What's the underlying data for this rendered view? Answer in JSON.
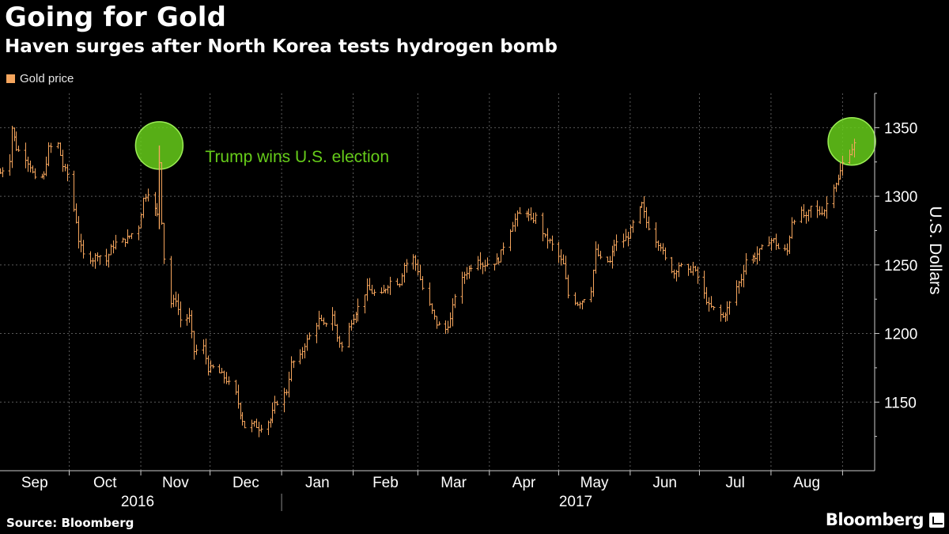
{
  "header": {
    "title": "Going for Gold",
    "subtitle": "Haven surges after North Korea tests hydrogen bomb"
  },
  "footer": {
    "source": "Source: Bloomberg",
    "brand": "Bloomberg"
  },
  "colors": {
    "background": "#000000",
    "series": "#f5a55d",
    "annotation": "#66cc1a",
    "grid": "#5a5a5a"
  },
  "chart_data": {
    "type": "bar",
    "ylabel": "U.S. Dollars",
    "ylim": [
      1100,
      1375
    ],
    "yticks": [
      1150,
      1200,
      1250,
      1300,
      1350
    ],
    "y_axis_position": "right",
    "grid": true,
    "legend": {
      "placement": "top-left",
      "entries": [
        {
          "label": "Gold price",
          "color": "#f5a55d"
        }
      ]
    },
    "x_months": [
      "Sep",
      "Oct",
      "Nov",
      "Dec",
      "Jan",
      "Feb",
      "Mar",
      "Apr",
      "May",
      "Jun",
      "Jul",
      "Aug"
    ],
    "x_years": [
      "2016",
      "2017"
    ],
    "date_range": [
      "2016-09-01",
      "2017-09-06"
    ],
    "annotations": [
      {
        "date": "2016-11-09",
        "value": 1337,
        "label": "Trump wins U.S. election"
      },
      {
        "date": "2017-09-05",
        "value": 1340,
        "label": ""
      }
    ],
    "series": [
      {
        "name": "Gold price",
        "style": "OHLC daily bars",
        "points": [
          [
            "2016-09-01",
            1317
          ],
          [
            "2016-09-05",
            1327
          ],
          [
            "2016-09-06",
            1350
          ],
          [
            "2016-09-08",
            1335
          ],
          [
            "2016-09-12",
            1328
          ],
          [
            "2016-09-14",
            1322
          ],
          [
            "2016-09-16",
            1312
          ],
          [
            "2016-09-20",
            1315
          ],
          [
            "2016-09-22",
            1335
          ],
          [
            "2016-09-26",
            1338
          ],
          [
            "2016-09-28",
            1322
          ],
          [
            "2016-09-30",
            1316
          ],
          [
            "2016-10-04",
            1282
          ],
          [
            "2016-10-05",
            1268
          ],
          [
            "2016-10-07",
            1257
          ],
          [
            "2016-10-11",
            1254
          ],
          [
            "2016-10-13",
            1258
          ],
          [
            "2016-10-17",
            1253
          ],
          [
            "2016-10-19",
            1262
          ],
          [
            "2016-10-21",
            1266
          ],
          [
            "2016-10-25",
            1268
          ],
          [
            "2016-10-27",
            1271
          ],
          [
            "2016-10-31",
            1278
          ],
          [
            "2016-11-02",
            1298
          ],
          [
            "2016-11-04",
            1303
          ],
          [
            "2016-11-08",
            1286
          ],
          [
            "2016-11-09",
            1325
          ],
          [
            "2016-11-10",
            1282
          ],
          [
            "2016-11-11",
            1255
          ],
          [
            "2016-11-14",
            1222
          ],
          [
            "2016-11-16",
            1225
          ],
          [
            "2016-11-18",
            1210
          ],
          [
            "2016-11-22",
            1212
          ],
          [
            "2016-11-24",
            1187
          ],
          [
            "2016-11-28",
            1190
          ],
          [
            "2016-11-30",
            1174
          ],
          [
            "2016-12-02",
            1175
          ],
          [
            "2016-12-06",
            1170
          ],
          [
            "2016-12-08",
            1166
          ],
          [
            "2016-12-12",
            1156
          ],
          [
            "2016-12-14",
            1142
          ],
          [
            "2016-12-16",
            1132
          ],
          [
            "2016-12-20",
            1134
          ],
          [
            "2016-12-22",
            1131
          ],
          [
            "2016-12-27",
            1137
          ],
          [
            "2016-12-29",
            1148
          ],
          [
            "2017-01-03",
            1158
          ],
          [
            "2017-01-05",
            1178
          ],
          [
            "2017-01-09",
            1183
          ],
          [
            "2017-01-11",
            1192
          ],
          [
            "2017-01-13",
            1198
          ],
          [
            "2017-01-17",
            1210
          ],
          [
            "2017-01-19",
            1206
          ],
          [
            "2017-01-23",
            1214
          ],
          [
            "2017-01-25",
            1197
          ],
          [
            "2017-01-27",
            1190
          ],
          [
            "2017-01-31",
            1209
          ],
          [
            "2017-02-03",
            1219
          ],
          [
            "2017-02-07",
            1233
          ],
          [
            "2017-02-09",
            1230
          ],
          [
            "2017-02-13",
            1228
          ],
          [
            "2017-02-15",
            1233
          ],
          [
            "2017-02-17",
            1238
          ],
          [
            "2017-02-21",
            1237
          ],
          [
            "2017-02-23",
            1250
          ],
          [
            "2017-02-27",
            1255
          ],
          [
            "2017-03-01",
            1246
          ],
          [
            "2017-03-03",
            1233
          ],
          [
            "2017-03-07",
            1216
          ],
          [
            "2017-03-09",
            1207
          ],
          [
            "2017-03-13",
            1203
          ],
          [
            "2017-03-15",
            1210
          ],
          [
            "2017-03-17",
            1228
          ],
          [
            "2017-03-21",
            1243
          ],
          [
            "2017-03-23",
            1247
          ],
          [
            "2017-03-27",
            1255
          ],
          [
            "2017-03-29",
            1250
          ],
          [
            "2017-04-03",
            1252
          ],
          [
            "2017-04-05",
            1254
          ],
          [
            "2017-04-07",
            1264
          ],
          [
            "2017-04-11",
            1280
          ],
          [
            "2017-04-13",
            1286
          ],
          [
            "2017-04-17",
            1289
          ],
          [
            "2017-04-19",
            1282
          ],
          [
            "2017-04-21",
            1285
          ],
          [
            "2017-04-25",
            1270
          ],
          [
            "2017-04-27",
            1267
          ],
          [
            "2017-05-01",
            1256
          ],
          [
            "2017-05-03",
            1250
          ],
          [
            "2017-05-05",
            1228
          ],
          [
            "2017-05-09",
            1222
          ],
          [
            "2017-05-11",
            1224
          ],
          [
            "2017-05-15",
            1232
          ],
          [
            "2017-05-17",
            1260
          ],
          [
            "2017-05-19",
            1254
          ],
          [
            "2017-05-23",
            1252
          ],
          [
            "2017-05-25",
            1265
          ],
          [
            "2017-05-29",
            1268
          ],
          [
            "2017-05-31",
            1271
          ],
          [
            "2017-06-02",
            1280
          ],
          [
            "2017-06-06",
            1294
          ],
          [
            "2017-06-08",
            1281
          ],
          [
            "2017-06-12",
            1268
          ],
          [
            "2017-06-14",
            1264
          ],
          [
            "2017-06-16",
            1254
          ],
          [
            "2017-06-20",
            1244
          ],
          [
            "2017-06-22",
            1250
          ],
          [
            "2017-06-26",
            1245
          ],
          [
            "2017-06-28",
            1248
          ],
          [
            "2017-06-30",
            1241
          ],
          [
            "2017-07-05",
            1220
          ],
          [
            "2017-07-07",
            1218
          ],
          [
            "2017-07-11",
            1212
          ],
          [
            "2017-07-13",
            1218
          ],
          [
            "2017-07-17",
            1234
          ],
          [
            "2017-07-19",
            1240
          ],
          [
            "2017-07-21",
            1254
          ],
          [
            "2017-07-25",
            1256
          ],
          [
            "2017-07-27",
            1260
          ],
          [
            "2017-07-31",
            1268
          ],
          [
            "2017-08-02",
            1268
          ],
          [
            "2017-08-04",
            1262
          ],
          [
            "2017-08-08",
            1260
          ],
          [
            "2017-08-10",
            1282
          ],
          [
            "2017-08-14",
            1288
          ],
          [
            "2017-08-16",
            1284
          ],
          [
            "2017-08-18",
            1292
          ],
          [
            "2017-08-22",
            1288
          ],
          [
            "2017-08-24",
            1290
          ],
          [
            "2017-08-28",
            1308
          ],
          [
            "2017-08-30",
            1312
          ],
          [
            "2017-09-01",
            1324
          ],
          [
            "2017-09-05",
            1335
          ],
          [
            "2017-09-06",
            1338
          ]
        ]
      }
    ]
  }
}
